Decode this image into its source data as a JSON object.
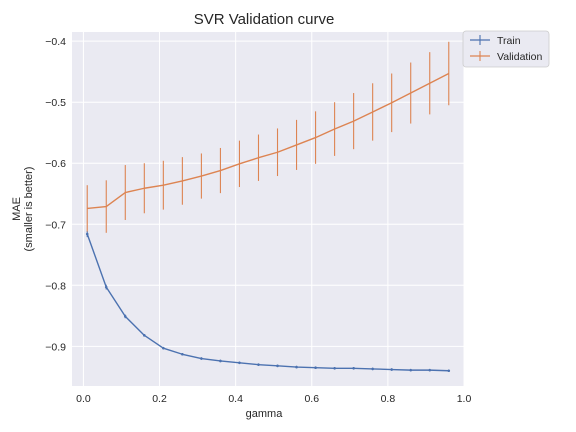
{
  "chart_data": {
    "type": "line",
    "title": "SVR Validation curve",
    "xlabel": "gamma",
    "ylabel_lines": [
      "MAE",
      "(smaller is better)"
    ],
    "xlim": [
      -0.03,
      1.0
    ],
    "ylim": [
      -0.965,
      -0.385
    ],
    "xticks": [
      0.0,
      0.2,
      0.4,
      0.6,
      0.8,
      1.0
    ],
    "xtick_labels": [
      "0.0",
      "0.2",
      "0.4",
      "0.6",
      "0.8",
      "1.0"
    ],
    "yticks": [
      -0.4,
      -0.5,
      -0.6,
      -0.7,
      -0.8,
      -0.9
    ],
    "ytick_labels": [
      "−0.4",
      "−0.5",
      "−0.6",
      "−0.7",
      "−0.8",
      "−0.9"
    ],
    "grid": true,
    "legend_position": "outside-top-right",
    "x": [
      0.01,
      0.06,
      0.11,
      0.16,
      0.21,
      0.26,
      0.31,
      0.36,
      0.41,
      0.46,
      0.51,
      0.56,
      0.61,
      0.66,
      0.71,
      0.76,
      0.81,
      0.86,
      0.91,
      0.96
    ],
    "series": [
      {
        "name": "Train",
        "color": "#4c72b0",
        "values": [
          -0.716,
          -0.803,
          -0.851,
          -0.882,
          -0.903,
          -0.913,
          -0.92,
          -0.924,
          -0.927,
          -0.93,
          -0.932,
          -0.934,
          -0.935,
          -0.936,
          -0.936,
          -0.937,
          -0.938,
          -0.939,
          -0.939,
          -0.94
        ],
        "errors": [
          0.005,
          0.004,
          0.003,
          0.002,
          0.002,
          0.002,
          0.002,
          0.002,
          0.002,
          0.002,
          0.002,
          0.002,
          0.002,
          0.002,
          0.002,
          0.002,
          0.002,
          0.002,
          0.002,
          0.002
        ]
      },
      {
        "name": "Validation",
        "color": "#dd8452",
        "values": [
          -0.674,
          -0.671,
          -0.648,
          -0.641,
          -0.636,
          -0.629,
          -0.621,
          -0.612,
          -0.601,
          -0.591,
          -0.582,
          -0.57,
          -0.558,
          -0.544,
          -0.531,
          -0.516,
          -0.501,
          -0.485,
          -0.469,
          -0.453
        ],
        "errors": [
          0.038,
          0.043,
          0.045,
          0.041,
          0.04,
          0.039,
          0.037,
          0.037,
          0.038,
          0.038,
          0.039,
          0.041,
          0.043,
          0.044,
          0.046,
          0.047,
          0.048,
          0.05,
          0.051,
          0.052
        ]
      }
    ]
  }
}
